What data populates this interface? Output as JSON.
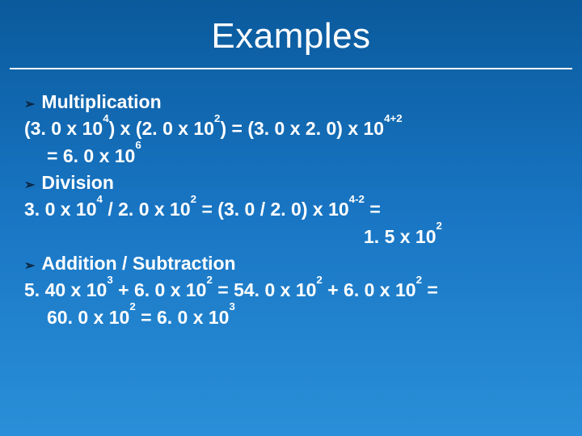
{
  "slide": {
    "title": "Examples",
    "background_gradient_top": "#0a5a9c",
    "background_gradient_bottom": "#2a8fd8",
    "title_color": "#ffffff",
    "title_underline_color": "#ffffff",
    "title_fontsize": 44,
    "body_fontsize": 23,
    "body_color": "#ffffff",
    "bullet_arrow_color": "#0a2540",
    "bullet_arrow_glyph": "➢",
    "sections": [
      {
        "heading": "Multiplication",
        "lines": [
          {
            "text": "(3. 0 x 10^4) x (2. 0 x 10^2) = (3. 0 x 2. 0) x 10^4+2",
            "indent": 0
          },
          {
            "text": "= 6. 0 x 10^6",
            "indent": 1
          }
        ]
      },
      {
        "heading": "Division",
        "lines": [
          {
            "text": "3. 0 x 10^4 / 2. 0 x 10^2 = (3. 0 / 2. 0) x 10^4-2 =",
            "indent": 0
          },
          {
            "text": "1. 5 x 10^2",
            "indent": "right"
          }
        ]
      },
      {
        "heading": "Addition / Subtraction",
        "lines": [
          {
            "text": "5. 40 x 10^3 + 6. 0 x 10^2 = 54. 0 x 10^2 + 6. 0 x 10^2 =",
            "indent": 0
          },
          {
            "text": "60. 0 x 10^2 = 6. 0 x 10^3",
            "indent": 1
          }
        ]
      }
    ]
  }
}
